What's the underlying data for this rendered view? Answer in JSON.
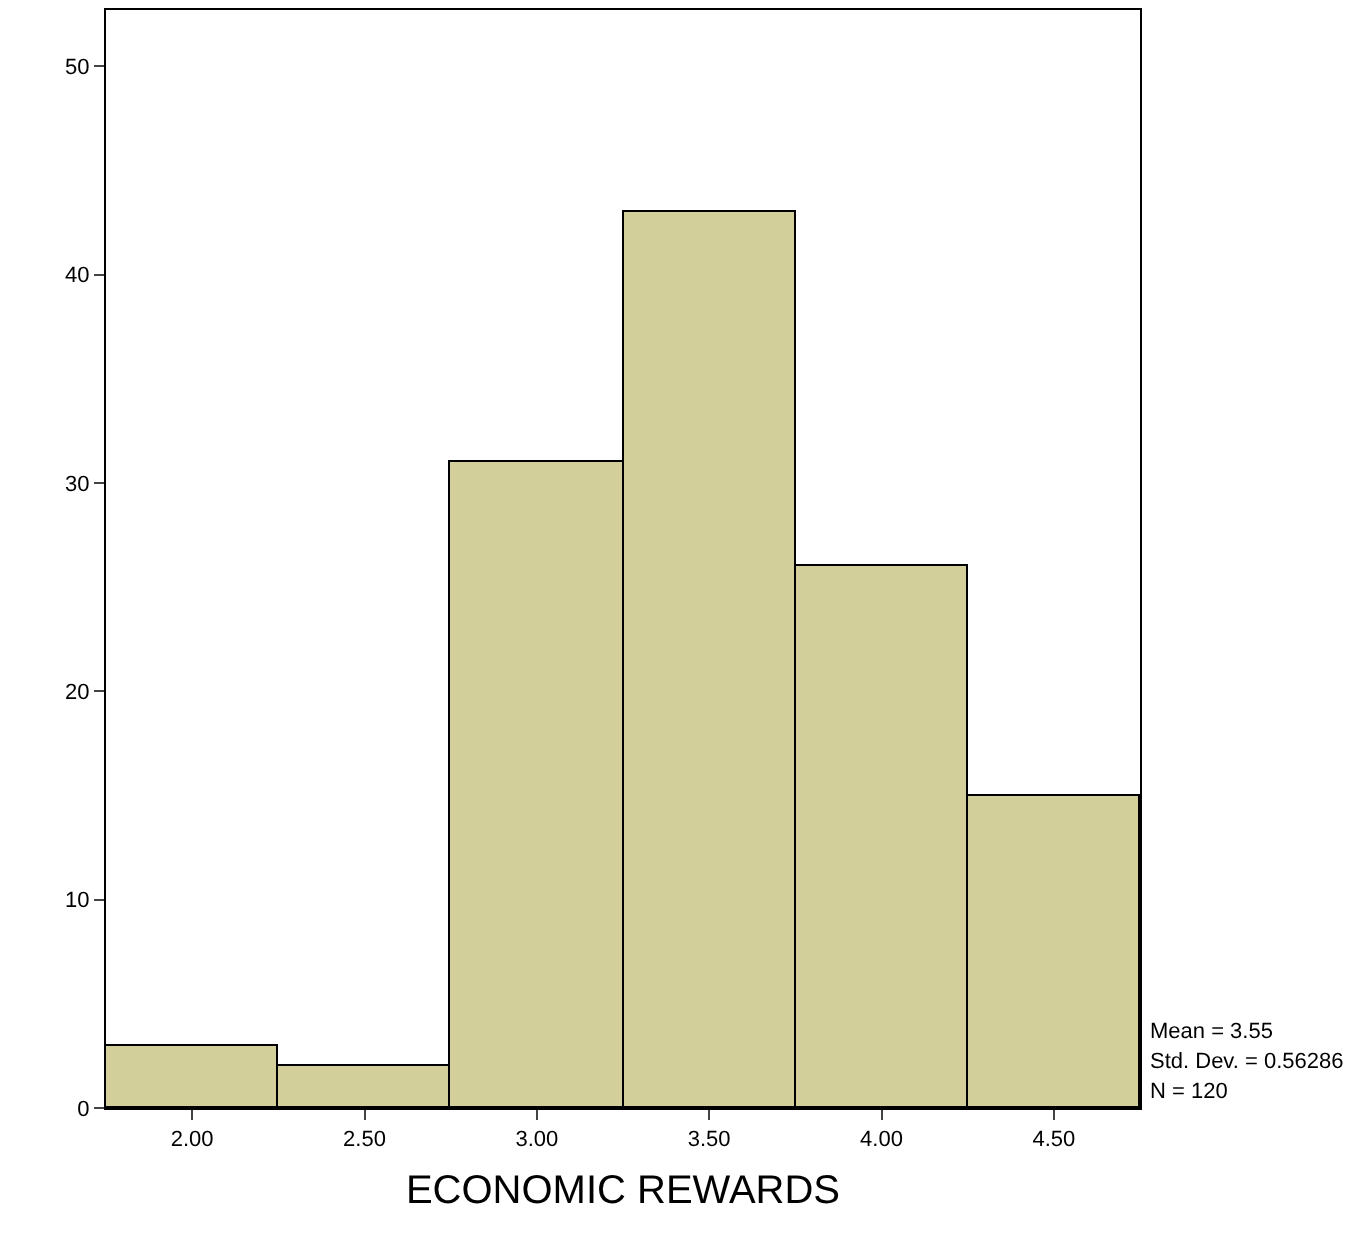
{
  "chart_data": {
    "type": "histogram",
    "xlabel": "ECONOMIC REWARDS",
    "bins": [
      1.75,
      2.25,
      2.75,
      3.25,
      3.75,
      4.25,
      4.75
    ],
    "values": [
      3,
      2,
      31,
      43,
      26,
      15
    ],
    "color": "#d3cf9a",
    "xlim": [
      1.75,
      4.75
    ],
    "xticks": [
      {
        "value": 2,
        "label": "2.00"
      },
      {
        "value": 2.5,
        "label": "2.50"
      },
      {
        "value": 3,
        "label": "3.00"
      },
      {
        "value": 3.5,
        "label": "3.50"
      },
      {
        "value": 4,
        "label": "4.00"
      },
      {
        "value": 4.5,
        "label": "4.50"
      }
    ],
    "ylim": [
      0,
      52.7
    ],
    "yticks": [
      0,
      10,
      20,
      30,
      40,
      50
    ],
    "annotations": [
      "Mean = 3.55",
      "Std. Dev. = 0.56286",
      "N = 120"
    ]
  }
}
